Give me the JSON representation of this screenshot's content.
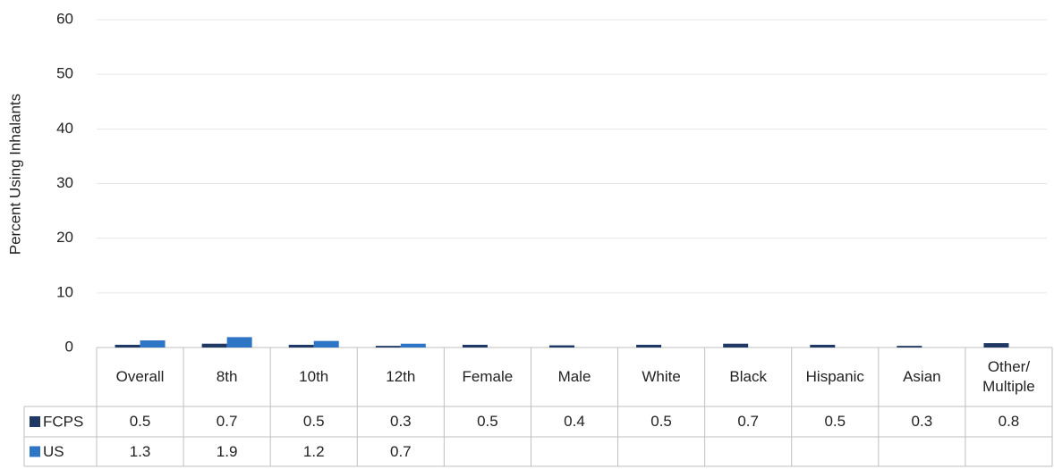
{
  "chart_data": {
    "type": "bar",
    "y_label": "Percent Using Inhalants",
    "categories": [
      "Overall",
      "8th",
      "10th",
      "12th",
      "Female",
      "Male",
      "White",
      "Black",
      "Hispanic",
      "Asian",
      "Other/ Multiple"
    ],
    "series": [
      {
        "name": "FCPS",
        "color": "#1f3864",
        "values": [
          0.5,
          0.7,
          0.5,
          0.3,
          0.5,
          0.4,
          0.5,
          0.7,
          0.5,
          0.3,
          0.8
        ]
      },
      {
        "name": "US",
        "color": "#2e75c6",
        "values": [
          1.3,
          1.9,
          1.2,
          0.7,
          null,
          null,
          null,
          null,
          null,
          null,
          null
        ]
      }
    ],
    "ylim": [
      0,
      60
    ],
    "yticks": [
      0,
      10,
      20,
      30,
      40,
      50,
      60
    ],
    "grid": true
  }
}
